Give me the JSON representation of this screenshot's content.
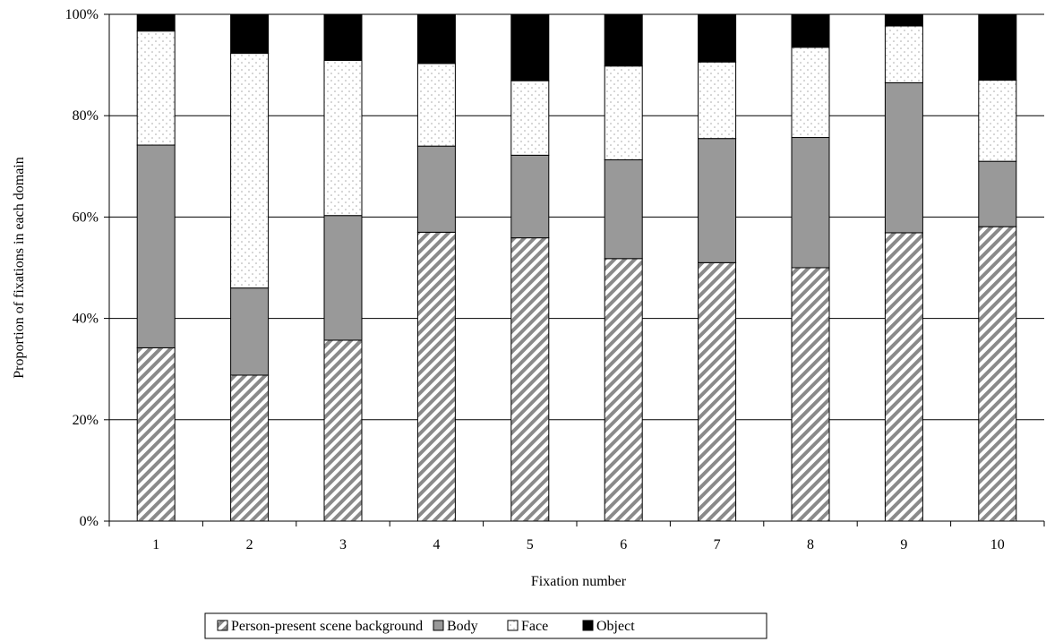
{
  "chart_data": {
    "type": "bar",
    "stacked": true,
    "title": "",
    "xlabel": "Fixation number",
    "ylabel": "Proportion of fixations in each domain",
    "ylim": [
      0,
      100
    ],
    "y_tick_values": [
      0,
      20,
      40,
      60,
      80,
      100
    ],
    "y_tick_labels": [
      "0%",
      "20%",
      "40%",
      "60%",
      "80%",
      "100%"
    ],
    "grid": true,
    "legend_position": "bottom",
    "categories": [
      "1",
      "2",
      "3",
      "4",
      "5",
      "6",
      "7",
      "8",
      "9",
      "10"
    ],
    "series": [
      {
        "name": "Person-present scene background",
        "pattern": "diagonal-hatch",
        "color": "#808080",
        "values": [
          34.2,
          28.8,
          35.7,
          57.0,
          55.9,
          51.8,
          51.0,
          50.0,
          56.9,
          58.1
        ]
      },
      {
        "name": "Body",
        "pattern": "solid",
        "color": "#999999",
        "values": [
          40.0,
          17.2,
          24.6,
          17.0,
          16.3,
          19.5,
          24.5,
          25.7,
          29.6,
          12.9
        ]
      },
      {
        "name": "Face",
        "pattern": "dotted",
        "color": "#ffffff",
        "values": [
          22.5,
          46.3,
          30.6,
          16.3,
          14.7,
          18.5,
          15.1,
          17.8,
          11.2,
          16.0
        ]
      },
      {
        "name": "Object",
        "pattern": "solid",
        "color": "#000000",
        "values": [
          3.3,
          7.7,
          9.1,
          9.7,
          13.1,
          10.2,
          9.4,
          6.5,
          2.3,
          13.0
        ]
      }
    ]
  }
}
